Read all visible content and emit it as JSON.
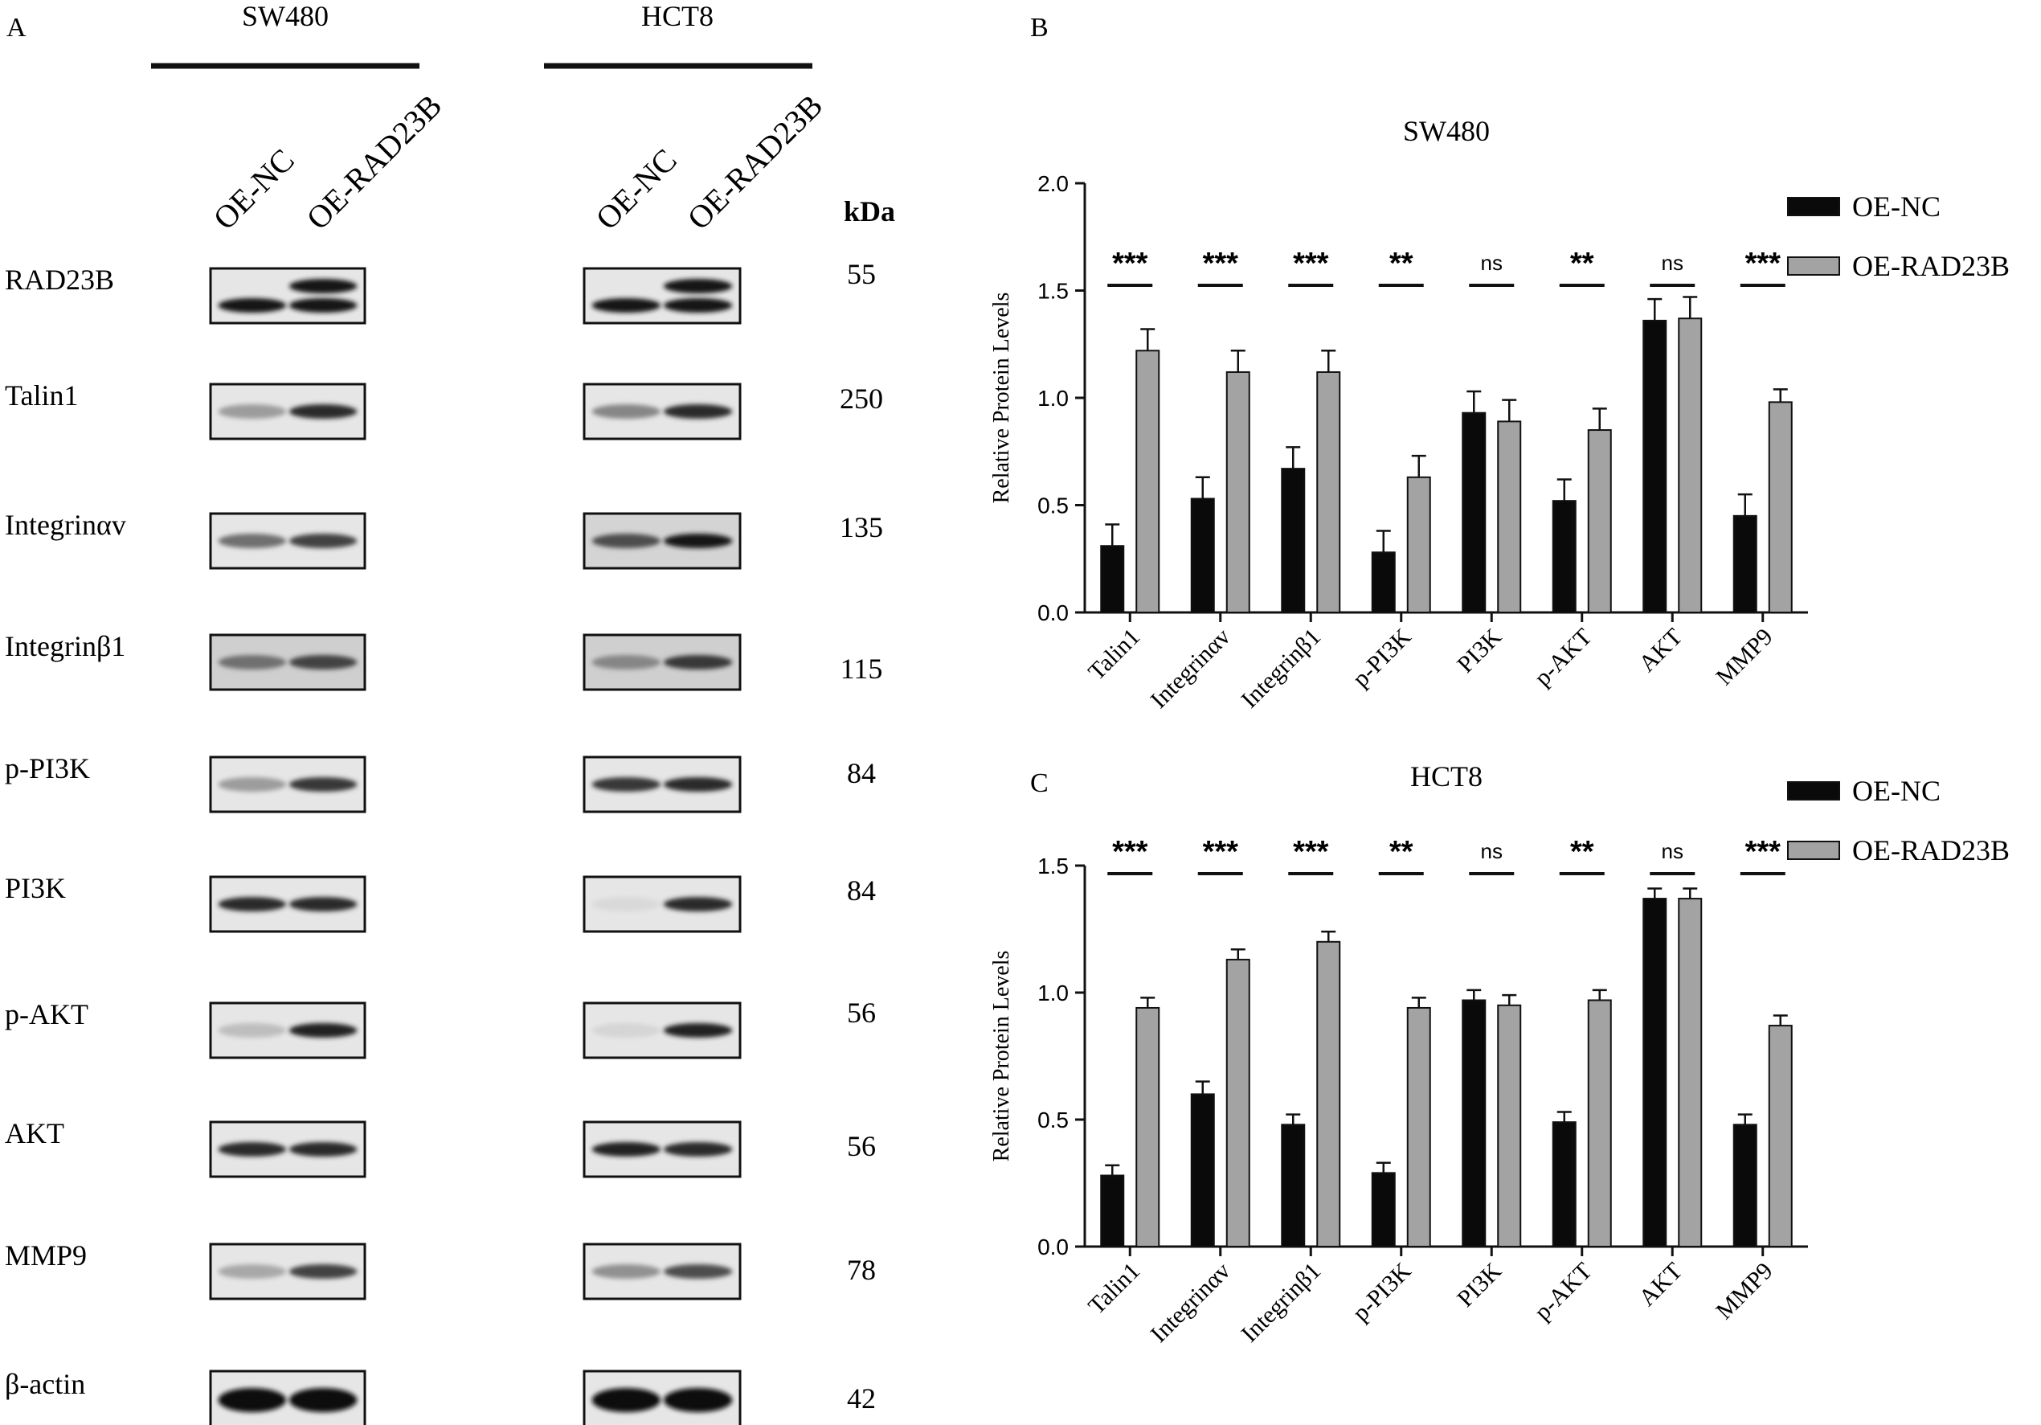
{
  "panels": {
    "a": "A",
    "b": "B",
    "c": "C"
  },
  "western_blot": {
    "cell_lines": [
      "SW480",
      "HCT8"
    ],
    "lanes": [
      "OE-NC",
      "OE-RAD23B"
    ],
    "kda_label": "kDa",
    "rows": [
      {
        "protein": "RAD23B",
        "kda": "55"
      },
      {
        "protein": "Talin1",
        "kda": "250"
      },
      {
        "protein": "Integrinαv",
        "kda": "135"
      },
      {
        "protein": "Integrinβ1",
        "kda": "115"
      },
      {
        "protein": "p-PI3K",
        "kda": "84"
      },
      {
        "protein": "PI3K",
        "kda": "84"
      },
      {
        "protein": "p-AKT",
        "kda": "56"
      },
      {
        "protein": "AKT",
        "kda": "56"
      },
      {
        "protein": "MMP9",
        "kda": "78"
      },
      {
        "protein": "β-actin",
        "kda": "42"
      }
    ]
  },
  "colors": {
    "oe_nc": "#0a0a0a",
    "oe_rad23b": "#a3a3a3",
    "axis": "#1a1a1a"
  },
  "chart_data": [
    {
      "type": "bar",
      "panel": "B",
      "title": "SW480",
      "ylabel": "Relative Protein Levels",
      "xlabel": "",
      "ylim": [
        0,
        2.0
      ],
      "yticks": [
        "0.0",
        "0.5",
        "1.0",
        "1.5",
        "2.0"
      ],
      "categories": [
        "Talin1",
        "Integrinαv",
        "Integrinβ1",
        "p-PI3K",
        "PI3K",
        "p-AKT",
        "AKT",
        "MMP9"
      ],
      "series": [
        {
          "name": "OE-NC",
          "values": [
            0.31,
            0.53,
            0.67,
            0.28,
            0.93,
            0.52,
            1.36,
            0.45
          ],
          "errors": [
            0.1,
            0.1,
            0.1,
            0.1,
            0.1,
            0.1,
            0.1,
            0.1
          ]
        },
        {
          "name": "OE-RAD23B",
          "values": [
            1.22,
            1.12,
            1.12,
            0.63,
            0.89,
            0.85,
            1.37,
            0.98
          ],
          "errors": [
            0.1,
            0.1,
            0.1,
            0.1,
            0.1,
            0.1,
            0.1,
            0.06
          ]
        }
      ],
      "significance": [
        "***",
        "***",
        "***",
        "**",
        "ns",
        "**",
        "ns",
        "***"
      ],
      "legend": "top-right"
    },
    {
      "type": "bar",
      "panel": "C",
      "title": "HCT8",
      "ylabel": "Relative Protein Levels",
      "xlabel": "",
      "ylim": [
        0,
        1.5
      ],
      "yticks": [
        "0.0",
        "0.5",
        "1.0",
        "1.5"
      ],
      "categories": [
        "Talin1",
        "Integrinαv",
        "Integrinβ1",
        "p-PI3K",
        "PI3K",
        "p-AKT",
        "AKT",
        "MMP9"
      ],
      "series": [
        {
          "name": "OE-NC",
          "values": [
            0.28,
            0.6,
            0.48,
            0.29,
            0.97,
            0.49,
            1.37,
            0.48
          ],
          "errors": [
            0.04,
            0.05,
            0.04,
            0.04,
            0.04,
            0.04,
            0.04,
            0.04
          ]
        },
        {
          "name": "OE-RAD23B",
          "values": [
            0.94,
            1.13,
            1.2,
            0.94,
            0.95,
            0.97,
            1.37,
            0.87
          ],
          "errors": [
            0.04,
            0.04,
            0.04,
            0.04,
            0.04,
            0.04,
            0.04,
            0.04
          ]
        }
      ],
      "significance": [
        "***",
        "***",
        "***",
        "**",
        "ns",
        "**",
        "ns",
        "***"
      ],
      "legend": "top-right"
    }
  ]
}
